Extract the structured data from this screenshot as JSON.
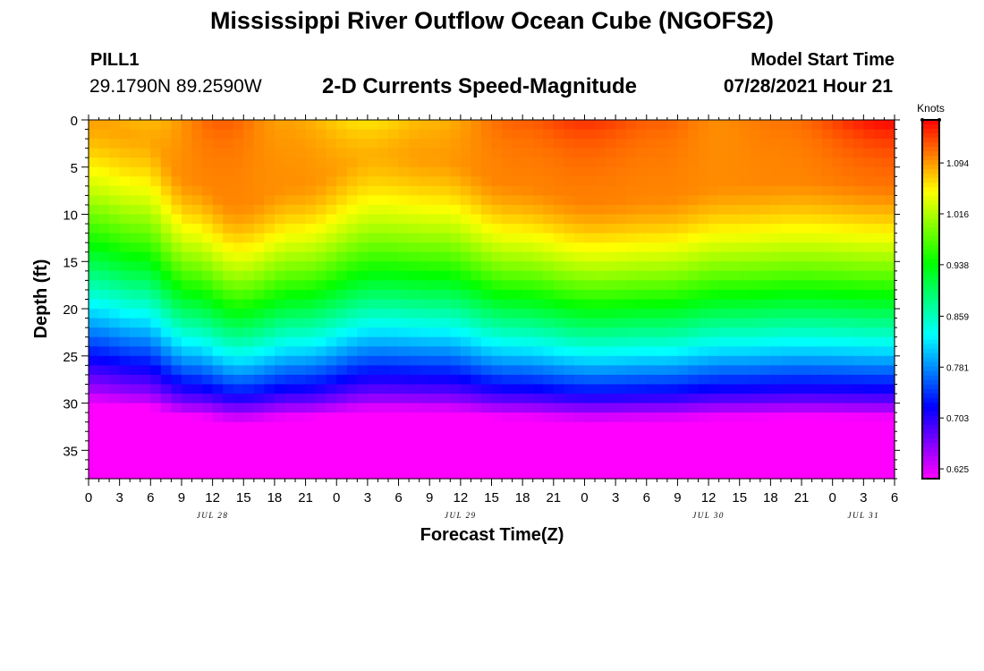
{
  "header": {
    "title": "Mississippi River Outflow Ocean Cube (NGOFS2)",
    "station_id": "PILL1",
    "station_coords": "29.1790N  89.2590W",
    "subtitle": "2-D Currents Speed-Magnitude",
    "model_start_label": "Model Start Time",
    "model_start_value": "07/28/2021 Hour 21"
  },
  "footer": {
    "title": "Mississippi River Outflow Ocean Cube (NGOFS2)"
  },
  "chart_data": {
    "type": "heatmap",
    "title": "2-D Currents Speed-Magnitude",
    "xlabel": "Forecast Time(Z)",
    "ylabel": "Depth (ft)",
    "x_hours_from_jul28_00z": [
      0,
      78
    ],
    "xlim_hours": [
      0,
      78
    ],
    "ylim_depth_ft": [
      0,
      38
    ],
    "y_inverted": true,
    "x_ticks": [
      "0",
      "3",
      "6",
      "9",
      "12",
      "15",
      "18",
      "21",
      "0",
      "3",
      "6",
      "9",
      "12",
      "15",
      "18",
      "21",
      "0",
      "3",
      "6",
      "9",
      "12",
      "15",
      "18",
      "21",
      "0",
      "3",
      "6"
    ],
    "x_tick_step_hours": 3,
    "date_labels": [
      {
        "text": "JUL 28",
        "hour": 12
      },
      {
        "text": "JUL 29",
        "hour": 36
      },
      {
        "text": "JUL 30",
        "hour": 60
      },
      {
        "text": "JUL 31",
        "hour": 75
      }
    ],
    "y_ticks": [
      0,
      5,
      10,
      15,
      20,
      25,
      30,
      35
    ],
    "colorbar": {
      "unit": "Knots",
      "min": 0.61,
      "max": 1.16,
      "ticks": [
        "1.094",
        "1.016",
        "0.938",
        "0.859",
        "0.781",
        "0.703",
        "0.625"
      ]
    },
    "surface_speed_knots": [
      {
        "hour": 0,
        "value": 1.09
      },
      {
        "hour": 6,
        "value": 1.08
      },
      {
        "hour": 13,
        "value": 1.12
      },
      {
        "hour": 19,
        "value": 1.09
      },
      {
        "hour": 27,
        "value": 1.06
      },
      {
        "hour": 33,
        "value": 1.08
      },
      {
        "hour": 42,
        "value": 1.12
      },
      {
        "hour": 48,
        "value": 1.14
      },
      {
        "hour": 55,
        "value": 1.12
      },
      {
        "hour": 61,
        "value": 1.1
      },
      {
        "hour": 67,
        "value": 1.11
      },
      {
        "hour": 78,
        "value": 1.16
      }
    ],
    "color_band_depth_shift_ft": [
      {
        "hour": 0,
        "shift": 0
      },
      {
        "hour": 5,
        "shift": 1.5
      },
      {
        "hour": 10,
        "shift": 6.5
      },
      {
        "hour": 14.5,
        "shift": 9.5
      },
      {
        "hour": 20,
        "shift": 7
      },
      {
        "hour": 28,
        "shift": 3.5
      },
      {
        "hour": 34,
        "shift": 4
      },
      {
        "hour": 41,
        "shift": 7
      },
      {
        "hour": 49,
        "shift": 9
      },
      {
        "hour": 55,
        "shift": 8.5
      },
      {
        "hour": 62,
        "shift": 7
      },
      {
        "hour": 69,
        "shift": 6.5
      },
      {
        "hour": 78,
        "shift": 7
      }
    ]
  }
}
